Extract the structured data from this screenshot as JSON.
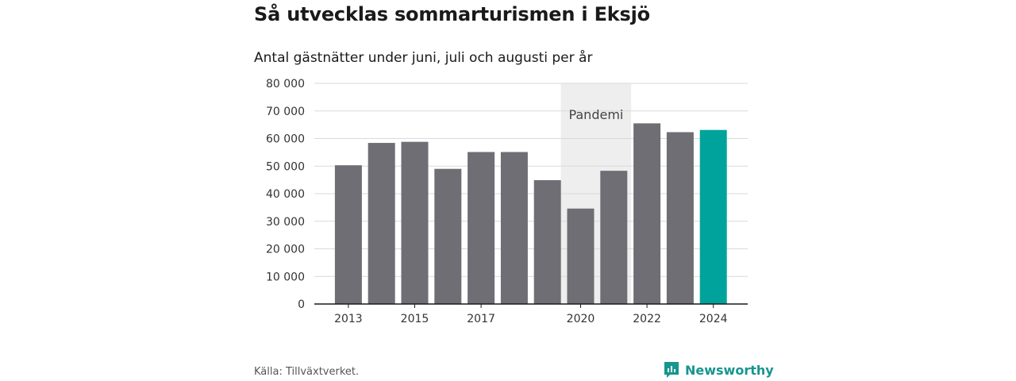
{
  "title": "Så utvecklas sommarturismen i Eksjö",
  "subtitle": "Antal gästnätter under juni, juli och augusti per år",
  "source": "Källa: Tillväxtverket.",
  "brand": "Newsworthy",
  "colors": {
    "bar": "#6f6e74",
    "highlight": "#00a39b",
    "band": "#eeeeee",
    "grid": "#d9d9d9",
    "brand": "#17958f"
  },
  "chart_data": {
    "type": "bar",
    "categories": [
      "2013",
      "2014",
      "2015",
      "2016",
      "2017",
      "2018",
      "2019",
      "2020",
      "2021",
      "2022",
      "2023",
      "2024"
    ],
    "values": [
      50300,
      58400,
      58800,
      49000,
      55100,
      55100,
      44900,
      34600,
      48300,
      65500,
      62300,
      63100
    ],
    "highlight_category": "2024",
    "ylim": [
      0,
      80000
    ],
    "yticks": [
      0,
      10000,
      20000,
      30000,
      40000,
      50000,
      60000,
      70000,
      80000
    ],
    "ytick_labels": [
      "0",
      "10 000",
      "20 000",
      "30 000",
      "40 000",
      "50 000",
      "60 000",
      "70 000",
      "80 000"
    ],
    "xtick_labels": [
      "2013",
      "2015",
      "2017",
      "2020",
      "2022",
      "2024"
    ],
    "annotation": {
      "label": "Pandemi",
      "from": "2020",
      "to": "2021"
    },
    "grid": true
  }
}
